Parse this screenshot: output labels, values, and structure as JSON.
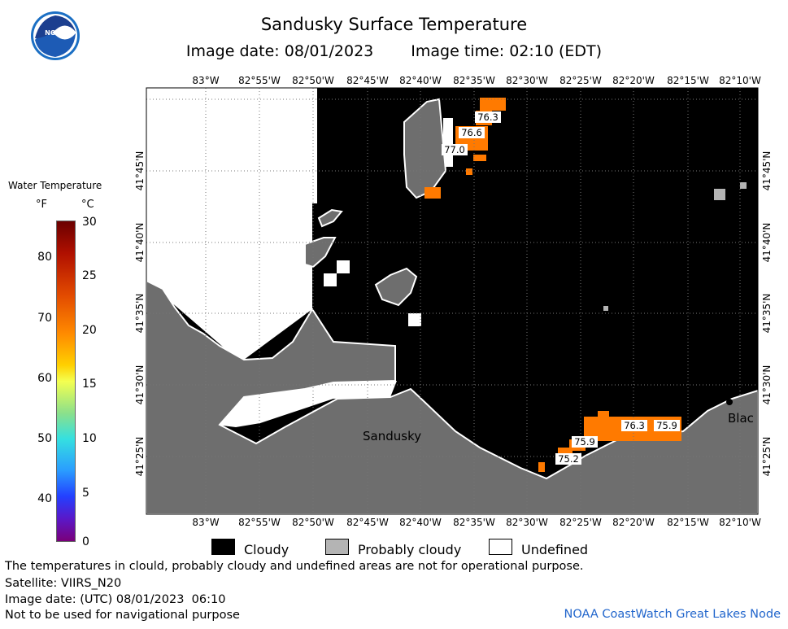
{
  "header": {
    "title": "Sandusky Surface Temperature",
    "image_date": "Image date: 08/01/2023",
    "image_time": "Image time: 02:10 (EDT)"
  },
  "logo": {
    "text": "NOAA",
    "icon": "noaa-logo-icon"
  },
  "scale": {
    "title": "Water Temperature",
    "unit_f": "°F",
    "unit_c": "°C",
    "fahrenheit_ticks": [
      "80",
      "70",
      "60",
      "50",
      "40"
    ],
    "celsius_ticks": [
      "30",
      "25",
      "20",
      "15",
      "10",
      "5",
      "0"
    ]
  },
  "map": {
    "lon_labels": [
      "83°W",
      "82°55'W",
      "82°50'W",
      "82°45'W",
      "82°40'W",
      "82°35'W",
      "82°30'W",
      "82°25'W",
      "82°20'W",
      "82°15'W",
      "82°10'W"
    ],
    "lat_labels": [
      "41°45'N",
      "41°40'N",
      "41°35'N",
      "41°30'N",
      "41°25'N"
    ],
    "place_labels": {
      "sandusky": "Sandusky",
      "black": "Blac"
    },
    "temperatures": [
      "76.3",
      "76.6",
      "77.0",
      "76.3",
      "75.9",
      "75.9",
      "75.2"
    ],
    "colors": {
      "cloudy": "#000000",
      "probably_cloudy": "#b4b4b4",
      "undefined": "#ffffff",
      "land": "#6e6e6e",
      "warm_water": "#ff7a00"
    }
  },
  "legend": {
    "cloudy": "Cloudy",
    "probably_cloudy": "Probably cloudy",
    "undefined": "Undefined"
  },
  "footer": {
    "disclaimer": "The temperatures in clould, probably cloudy and undefined areas are not for operational purpose.",
    "satellite": "Satellite: VIIRS_N20",
    "utc_date": "Image date: (UTC) 08/01/2023  06:10",
    "navigation": "Not to be used for navigational purpose",
    "credit": "NOAA CoastWatch Great Lakes Node"
  }
}
